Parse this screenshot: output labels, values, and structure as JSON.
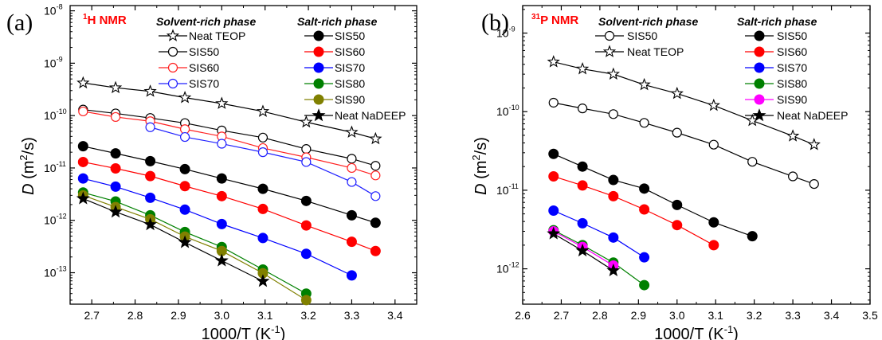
{
  "chart_data": [
    {
      "type": "line",
      "panel_label": "(a)",
      "title_sup": "1",
      "title_main": "H NMR",
      "xlabel": "1000/T (K",
      "xlabel_sup": "-1",
      "xlabel_tail": ")",
      "ylabel_prefix": "D",
      "ylabel_rest": " (m",
      "ylabel_sup": "2",
      "ylabel_tail": "/s)",
      "y_scale": "log",
      "xlim": [
        2.65,
        3.45
      ],
      "ylim_exp": [
        -13.6,
        -7.9
      ],
      "x_ticks": [
        "2.7",
        "2.8",
        "2.9",
        "3.0",
        "3.1",
        "3.2",
        "3.3",
        "3.4"
      ],
      "y_ticks": [
        {
          "base": "10",
          "exp": "-8"
        },
        {
          "base": "10",
          "exp": "-9"
        },
        {
          "base": "10",
          "exp": "-10"
        },
        {
          "base": "10",
          "exp": "-11"
        },
        {
          "base": "10",
          "exp": "-12"
        },
        {
          "base": "10",
          "exp": "-13"
        }
      ],
      "legend_groups": [
        {
          "title": "Solvent-rich phase",
          "entries": [
            0,
            1,
            2,
            3
          ]
        },
        {
          "title": "Salt-rich phase",
          "entries": [
            4,
            5,
            6,
            7,
            8,
            9
          ]
        }
      ],
      "series": [
        {
          "name": "Neat TEOP",
          "color": "#000000",
          "marker": "star-open",
          "x": [
            2.68,
            2.755,
            2.835,
            2.915,
            3.0,
            3.095,
            3.195,
            3.3,
            3.355
          ],
          "y": [
            4.2e-10,
            3.4e-10,
            2.9e-10,
            2.2e-10,
            1.7e-10,
            1.2e-10,
            7.5e-11,
            4.8e-11,
            3.6e-11
          ]
        },
        {
          "name": "SIS50",
          "color": "#000000",
          "marker": "circle-open",
          "x": [
            2.68,
            2.755,
            2.835,
            2.915,
            3.0,
            3.095,
            3.195,
            3.3,
            3.355
          ],
          "y": [
            1.3e-10,
            1.1e-10,
            9e-11,
            7.2e-11,
            5.2e-11,
            3.8e-11,
            2.3e-11,
            1.5e-11,
            1.1e-11
          ]
        },
        {
          "name": "SIS60",
          "color": "#ff2020",
          "marker": "circle-open",
          "x": [
            2.68,
            2.755,
            2.835,
            2.915,
            3.0,
            3.095,
            3.195,
            3.3,
            3.355
          ],
          "y": [
            1.2e-10,
            9.4e-11,
            7.8e-11,
            5.5e-11,
            4e-11,
            2.4e-11,
            1.6e-11,
            1e-11,
            7.2e-12
          ]
        },
        {
          "name": "SIS70",
          "color": "#2020ff",
          "marker": "circle-open",
          "x": [
            2.835,
            2.915,
            3.0,
            3.095,
            3.195,
            3.3,
            3.355
          ],
          "y": [
            6e-11,
            3.9e-11,
            2.9e-11,
            2e-11,
            1.3e-11,
            5.4e-12,
            2.9e-12
          ]
        },
        {
          "name": "SIS50",
          "color": "#000000",
          "marker": "circle-filled",
          "x": [
            2.68,
            2.755,
            2.835,
            2.915,
            3.0,
            3.095,
            3.195,
            3.3,
            3.355
          ],
          "y": [
            2.6e-11,
            1.9e-11,
            1.35e-11,
            9.5e-12,
            6.3e-12,
            4e-12,
            2.35e-12,
            1.25e-12,
            9e-13
          ]
        },
        {
          "name": "SIS60",
          "color": "#ff0000",
          "marker": "circle-filled",
          "x": [
            2.68,
            2.755,
            2.835,
            2.915,
            3.0,
            3.095,
            3.195,
            3.3,
            3.355
          ],
          "y": [
            1.3e-11,
            9.8e-12,
            7e-12,
            4.5e-12,
            2.9e-12,
            1.65e-12,
            8e-13,
            3.9e-13,
            2.6e-13
          ]
        },
        {
          "name": "SIS70",
          "color": "#0000ff",
          "marker": "circle-filled",
          "x": [
            2.68,
            2.755,
            2.835,
            2.915,
            3.0,
            3.095,
            3.195,
            3.3
          ],
          "y": [
            6.3e-12,
            4.4e-12,
            2.7e-12,
            1.6e-12,
            8.5e-13,
            4.6e-13,
            2.3e-13,
            8.9e-14
          ]
        },
        {
          "name": "SIS80",
          "color": "#008000",
          "marker": "circle-filled",
          "x": [
            2.68,
            2.755,
            2.835,
            2.915,
            3.0,
            3.095,
            3.195
          ],
          "y": [
            3.4e-12,
            2.3e-12,
            1.25e-12,
            6e-13,
            3.1e-13,
            1.15e-13,
            4e-14
          ]
        },
        {
          "name": "SIS90",
          "color": "#808000",
          "marker": "circle-filled",
          "x": [
            2.68,
            2.755,
            2.835,
            2.915,
            3.0,
            3.095,
            3.195
          ],
          "y": [
            3e-12,
            1.8e-12,
            1.05e-12,
            4.9e-13,
            2.6e-13,
            9.8e-14,
            3e-14
          ]
        },
        {
          "name": "Neat NaDEEP",
          "color": "#000000",
          "marker": "star-filled",
          "x": [
            2.68,
            2.755,
            2.835,
            2.915,
            3.0,
            3.095
          ],
          "y": [
            2.6e-12,
            1.45e-12,
            8.3e-13,
            3.8e-13,
            1.7e-13,
            6.9e-14
          ]
        }
      ]
    },
    {
      "type": "line",
      "panel_label": "(b)",
      "title_sup": "31",
      "title_main": "P NMR",
      "xlabel": "1000/T (K",
      "xlabel_sup": "-1",
      "xlabel_tail": ")",
      "ylabel_prefix": "D",
      "ylabel_rest": " (m",
      "ylabel_sup": "2",
      "ylabel_tail": "/s)",
      "y_scale": "log",
      "xlim": [
        2.6,
        3.5
      ],
      "ylim_exp": [
        -12.45,
        -8.65
      ],
      "x_ticks": [
        "2.6",
        "2.7",
        "2.8",
        "2.9",
        "3.0",
        "3.1",
        "3.2",
        "3.3",
        "3.4",
        "3.5"
      ],
      "y_ticks": [
        {
          "base": "10",
          "exp": "-9"
        },
        {
          "base": "10",
          "exp": "-10"
        },
        {
          "base": "10",
          "exp": "-11"
        },
        {
          "base": "10",
          "exp": "-12"
        }
      ],
      "legend_groups": [
        {
          "title": "Solvent-rich phase",
          "entries": [
            0,
            1
          ]
        },
        {
          "title": "Salt-rich phase",
          "entries": [
            2,
            3,
            4,
            5,
            6,
            7
          ]
        }
      ],
      "series": [
        {
          "name": "SIS50",
          "color": "#000000",
          "marker": "circle-open",
          "x": [
            2.68,
            2.755,
            2.835,
            2.915,
            3.0,
            3.095,
            3.195,
            3.3,
            3.355
          ],
          "y": [
            1.3e-10,
            1.1e-10,
            9.3e-11,
            7.2e-11,
            5.4e-11,
            3.8e-11,
            2.3e-11,
            1.5e-11,
            1.2e-11
          ]
        },
        {
          "name": "Neat TEOP",
          "color": "#000000",
          "marker": "star-open",
          "x": [
            2.68,
            2.755,
            2.835,
            2.915,
            3.0,
            3.095,
            3.195,
            3.3,
            3.355
          ],
          "y": [
            4.3e-10,
            3.5e-10,
            3e-10,
            2.2e-10,
            1.7e-10,
            1.2e-10,
            7.7e-11,
            4.9e-11,
            3.8e-11
          ]
        },
        {
          "name": "SIS50",
          "color": "#000000",
          "marker": "circle-filled",
          "x": [
            2.68,
            2.755,
            2.835,
            2.915,
            3.0,
            3.095,
            3.195
          ],
          "y": [
            2.9e-11,
            2e-11,
            1.35e-11,
            1.05e-11,
            6.5e-12,
            3.9e-12,
            2.6e-12
          ]
        },
        {
          "name": "SIS60",
          "color": "#ff0000",
          "marker": "circle-filled",
          "x": [
            2.68,
            2.755,
            2.835,
            2.915,
            3.0,
            3.095
          ],
          "y": [
            1.5e-11,
            1.15e-11,
            8.4e-12,
            5.7e-12,
            3.6e-12,
            2e-12
          ]
        },
        {
          "name": "SIS70",
          "color": "#0000ff",
          "marker": "circle-filled",
          "x": [
            2.68,
            2.755,
            2.835,
            2.915
          ],
          "y": [
            5.5e-12,
            3.8e-12,
            2.5e-12,
            1.4e-12
          ]
        },
        {
          "name": "SIS80",
          "color": "#008000",
          "marker": "circle-filled",
          "x": [
            2.68,
            2.755,
            2.835,
            2.915
          ],
          "y": [
            3.1e-12,
            2e-12,
            1.2e-12,
            6.2e-13
          ]
        },
        {
          "name": "SIS90",
          "color": "#ff00ff",
          "marker": "circle-filled",
          "x": [
            2.68,
            2.755,
            2.835
          ],
          "y": [
            3e-12,
            1.9e-12,
            1.1e-12
          ]
        },
        {
          "name": "Neat NaDEEP",
          "color": "#000000",
          "marker": "star-filled",
          "x": [
            2.68,
            2.755,
            2.835
          ],
          "y": [
            2.8e-12,
            1.7e-12,
            9.5e-13
          ]
        }
      ]
    }
  ]
}
